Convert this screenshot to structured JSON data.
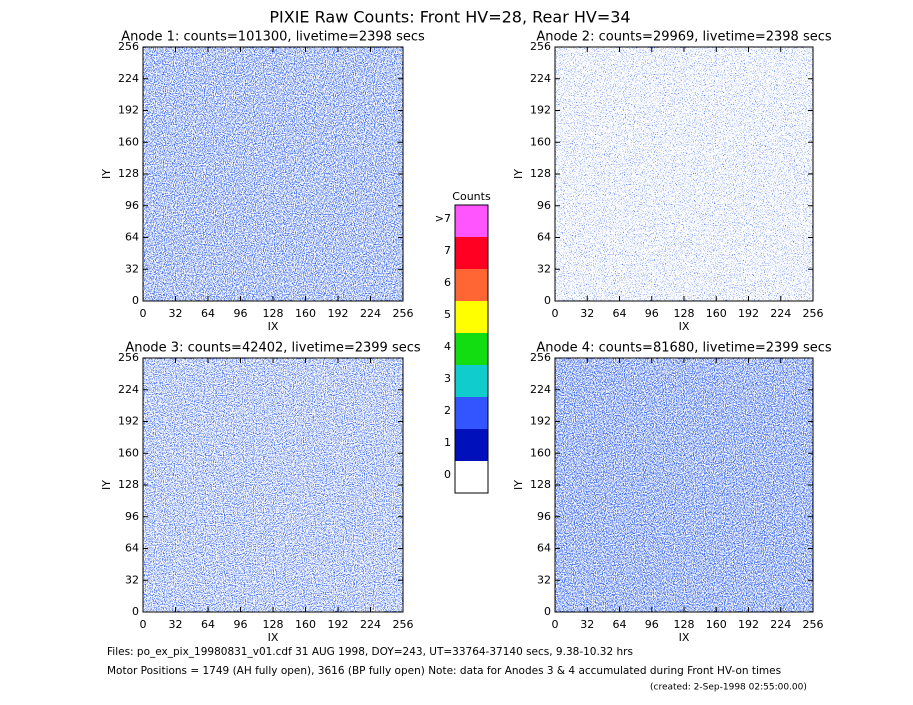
{
  "title": "PIXIE Raw Counts:  Front HV=28, Rear HV=34",
  "chart_data": [
    {
      "type": "heatmap",
      "title": "Anode 1: counts=101300, livetime=2398 secs",
      "xlabel": "IX",
      "ylabel": "IY",
      "xlim": [
        0,
        256
      ],
      "ylim": [
        0,
        256
      ],
      "xticks": [
        0,
        32,
        64,
        96,
        128,
        160,
        192,
        224,
        256
      ],
      "yticks": [
        0,
        32,
        64,
        96,
        128,
        160,
        192,
        224,
        256
      ]
    },
    {
      "type": "heatmap",
      "title": "Anode 2: counts=29969, livetime=2398 secs",
      "xlabel": "IX",
      "ylabel": "IY",
      "xlim": [
        0,
        256
      ],
      "ylim": [
        0,
        256
      ],
      "xticks": [
        0,
        32,
        64,
        96,
        128,
        160,
        192,
        224,
        256
      ],
      "yticks": [
        0,
        32,
        64,
        96,
        128,
        160,
        192,
        224,
        256
      ]
    },
    {
      "type": "heatmap",
      "title": "Anode 3: counts=42402, livetime=2399 secs",
      "xlabel": "IX",
      "ylabel": "IY",
      "xlim": [
        0,
        256
      ],
      "ylim": [
        0,
        256
      ],
      "xticks": [
        0,
        32,
        64,
        96,
        128,
        160,
        192,
        224,
        256
      ],
      "yticks": [
        0,
        32,
        64,
        96,
        128,
        160,
        192,
        224,
        256
      ]
    },
    {
      "type": "heatmap",
      "title": "Anode 4: counts=81680, livetime=2399 secs",
      "xlabel": "IX",
      "ylabel": "IY",
      "xlim": [
        0,
        256
      ],
      "ylim": [
        0,
        256
      ],
      "xticks": [
        0,
        32,
        64,
        96,
        128,
        160,
        192,
        224,
        256
      ],
      "yticks": [
        0,
        32,
        64,
        96,
        128,
        160,
        192,
        224,
        256
      ]
    }
  ],
  "colorbar": {
    "title": "Counts",
    "levels": [
      {
        "label": "0",
        "color": "#ffffff"
      },
      {
        "label": "1",
        "color": "#0011bb"
      },
      {
        "label": "2",
        "color": "#3355ff"
      },
      {
        "label": "3",
        "color": "#11cccc"
      },
      {
        "label": "4",
        "color": "#11dd11"
      },
      {
        "label": "5",
        "color": "#ffff00"
      },
      {
        "label": "6",
        "color": "#ff6633"
      },
      {
        "label": "7",
        "color": "#ff0022"
      },
      {
        "label": ">7",
        "color": "#ff55ff"
      }
    ]
  },
  "footer": [
    "Files: po_ex_pix_19980831_v01.cdf    31 AUG 1998, DOY=243, UT=33764-37140 secs,  9.38-10.32 hrs",
    "Motor Positions = 1749 (AH fully open), 3616 (BP fully open)    Note: data for Anodes 3 & 4 accumulated during Front HV-on times",
    "(created:  2-Sep-1998 02:55:00.00)"
  ]
}
